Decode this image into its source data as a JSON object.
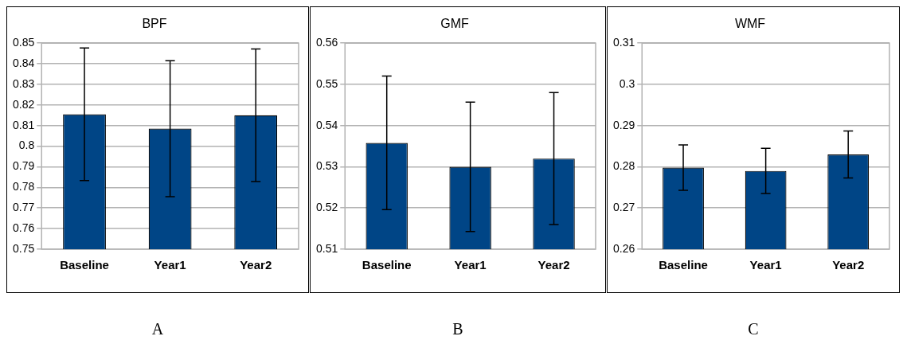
{
  "chart_data": [
    {
      "type": "bar",
      "title": "BPF",
      "categories": [
        "Baseline",
        "Year1",
        "Year2"
      ],
      "values": [
        0.8155,
        0.8085,
        0.815
      ],
      "errors": [
        0.0322,
        0.033,
        0.0322
      ],
      "color": "#004586",
      "ylim": [
        0.75,
        0.85
      ],
      "yticks": [
        0.75,
        0.76,
        0.77,
        0.78,
        0.79,
        0.8,
        0.81,
        0.82,
        0.83,
        0.84,
        0.85
      ],
      "grid": "y",
      "annotations": [
        "A"
      ]
    },
    {
      "type": "bar",
      "title": "GMF",
      "categories": [
        "Baseline",
        "Year1",
        "Year2"
      ],
      "values": [
        0.5358,
        0.53,
        0.532
      ],
      "errors": [
        0.0162,
        0.0157,
        0.016
      ],
      "color": "#004586",
      "ylim": [
        0.51,
        0.56
      ],
      "yticks": [
        0.51,
        0.52,
        0.53,
        0.54,
        0.55,
        0.56
      ],
      "grid": "y",
      "annotations": [
        "B"
      ]
    },
    {
      "type": "bar",
      "title": "WMF",
      "categories": [
        "Baseline",
        "Year1",
        "Year2"
      ],
      "values": [
        0.2798,
        0.279,
        0.283
      ],
      "errors": [
        0.0055,
        0.0055,
        0.0057
      ],
      "color": "#004586",
      "ylim": [
        0.26,
        0.31
      ],
      "yticks": [
        0.26,
        0.27,
        0.28,
        0.29,
        0.3,
        0.31
      ],
      "grid": "y",
      "annotations": [
        "C"
      ]
    }
  ]
}
